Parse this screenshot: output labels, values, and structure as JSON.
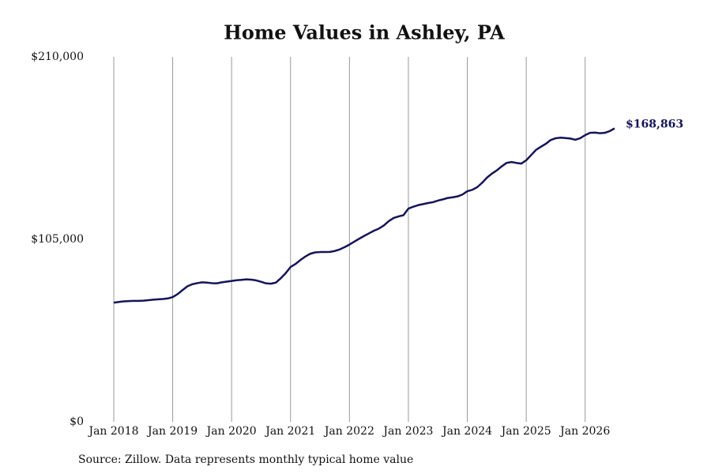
{
  "chart_data": {
    "type": "line",
    "title": "Home Values in Ashley, PA",
    "source": "Source: Zillow. Data represents monthly typical home value",
    "color": "#14145a",
    "grid": true,
    "x": [
      "2018-01",
      "2018-02",
      "2018-03",
      "2018-04",
      "2018-05",
      "2018-06",
      "2018-07",
      "2018-08",
      "2018-09",
      "2018-10",
      "2018-11",
      "2018-12",
      "2019-01",
      "2019-02",
      "2019-03",
      "2019-04",
      "2019-05",
      "2019-06",
      "2019-07",
      "2019-08",
      "2019-09",
      "2019-10",
      "2019-11",
      "2019-12",
      "2020-01",
      "2020-02",
      "2020-03",
      "2020-04",
      "2020-05",
      "2020-06",
      "2020-07",
      "2020-08",
      "2020-09",
      "2020-10",
      "2020-11",
      "2020-12",
      "2021-01",
      "2021-02",
      "2021-03",
      "2021-04",
      "2021-05",
      "2021-06",
      "2021-07",
      "2021-08",
      "2021-09",
      "2021-10",
      "2021-11",
      "2021-12",
      "2022-01",
      "2022-02",
      "2022-03",
      "2022-04",
      "2022-05",
      "2022-06",
      "2022-07",
      "2022-08",
      "2022-09",
      "2022-10",
      "2022-11",
      "2022-12",
      "2023-01",
      "2023-02",
      "2023-03",
      "2023-04",
      "2023-05",
      "2023-06",
      "2023-07",
      "2023-08",
      "2023-09",
      "2023-10",
      "2023-11",
      "2023-12",
      "2024-01",
      "2024-02",
      "2024-03",
      "2024-04",
      "2024-05",
      "2024-06",
      "2024-07",
      "2024-08",
      "2024-09",
      "2024-10",
      "2024-11",
      "2024-12",
      "2025-01",
      "2025-02",
      "2025-03",
      "2025-04",
      "2025-05",
      "2025-06",
      "2025-07",
      "2025-08",
      "2025-09",
      "2025-10",
      "2025-11",
      "2025-12",
      "2026-01",
      "2026-02",
      "2026-03",
      "2026-04",
      "2026-05",
      "2026-06",
      "2026-07"
    ],
    "values": [
      68600,
      69000,
      69300,
      69500,
      69600,
      69600,
      69700,
      70000,
      70300,
      70500,
      70700,
      71000,
      71800,
      73500,
      75800,
      78000,
      79200,
      79800,
      80300,
      80100,
      79800,
      79700,
      80300,
      80700,
      81100,
      81500,
      81700,
      82000,
      81800,
      81400,
      80600,
      79700,
      79500,
      80100,
      82600,
      85500,
      89100,
      90800,
      93100,
      95100,
      96700,
      97500,
      97700,
      97700,
      97800,
      98300,
      99200,
      100500,
      102000,
      103700,
      105400,
      107000,
      108500,
      110000,
      111200,
      113000,
      115500,
      117300,
      118200,
      118900,
      122700,
      123800,
      124700,
      125300,
      125900,
      126400,
      127300,
      128000,
      128800,
      129200,
      129700,
      130800,
      132700,
      133500,
      135000,
      137500,
      140500,
      142800,
      144700,
      147000,
      149000,
      149500,
      149000,
      148600,
      150500,
      153500,
      156500,
      158300,
      160000,
      162200,
      163200,
      163500,
      163300,
      163000,
      162300,
      163200,
      165000,
      166300,
      166400,
      166100,
      166300,
      167300,
      168863
    ],
    "value_labels": [
      null,
      null,
      null,
      null,
      null,
      null,
      null,
      null,
      null,
      null,
      null,
      null,
      null,
      null,
      null,
      null,
      null,
      null,
      null,
      null,
      null,
      null,
      null,
      null,
      null,
      null,
      null,
      null,
      null,
      null,
      null,
      null,
      null,
      null,
      null,
      null,
      null,
      null,
      null,
      null,
      null,
      null,
      null,
      null,
      null,
      null,
      null,
      null,
      null,
      null,
      null,
      null,
      null,
      null,
      null,
      null,
      null,
      null,
      null,
      null,
      null,
      null,
      null,
      null,
      null,
      null,
      null,
      null,
      null,
      null,
      null,
      null,
      null,
      null,
      null,
      null,
      null,
      null,
      null,
      null,
      null,
      null,
      null,
      null,
      null,
      null,
      null,
      null,
      null,
      null,
      null,
      null,
      null,
      null,
      null,
      null,
      null,
      null,
      null,
      null,
      null,
      null,
      "$168,863"
    ],
    "xlim": [
      "2018-01",
      "2026-07"
    ],
    "xticks": [
      {
        "value": "2018-01",
        "label": "Jan 2018"
      },
      {
        "value": "2019-01",
        "label": "Jan 2019"
      },
      {
        "value": "2020-01",
        "label": "Jan 2020"
      },
      {
        "value": "2021-01",
        "label": "Jan 2021"
      },
      {
        "value": "2022-01",
        "label": "Jan 2022"
      },
      {
        "value": "2023-01",
        "label": "Jan 2023"
      },
      {
        "value": "2024-01",
        "label": "Jan 2024"
      },
      {
        "value": "2025-01",
        "label": "Jan 2025"
      },
      {
        "value": "2026-01",
        "label": "Jan 2026"
      }
    ],
    "ylim": [
      0,
      210000
    ],
    "yticks": [
      {
        "value": 0,
        "label": "$0"
      },
      {
        "value": 105000,
        "label": "$105,000"
      },
      {
        "value": 210000,
        "label": "$210,000"
      }
    ]
  }
}
